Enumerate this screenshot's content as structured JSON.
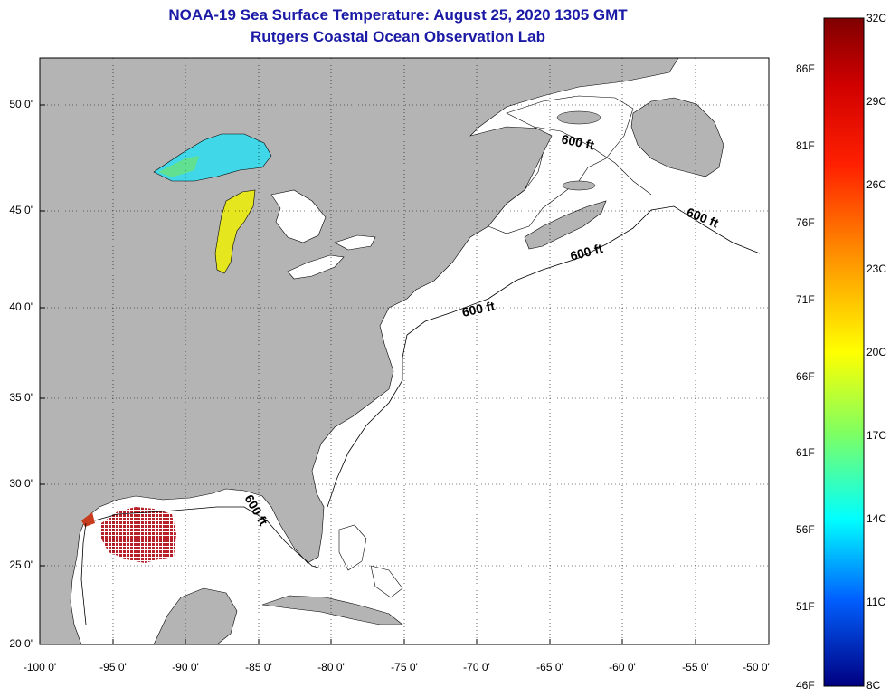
{
  "header": {
    "title": "NOAA-19 Sea Surface Temperature:  August 25, 2020 1305 GMT",
    "subtitle": "Rutgers Coastal Ocean Observation Lab"
  },
  "map": {
    "lat_ticks": [
      "50 0'",
      "45 0'",
      "40 0'",
      "35 0'",
      "30 0'",
      "25 0'",
      "20 0'"
    ],
    "lon_ticks": [
      "-100 0'",
      "-95 0'",
      "-90 0'",
      "-85 0'",
      "-80 0'",
      "-75 0'",
      "-70 0'",
      "-65 0'",
      "-60 0'",
      "-55 0'",
      "-50 0'"
    ],
    "contour_labels": [
      "600 ft",
      "600 ft",
      "600 ft",
      "600 ft",
      "600 ft"
    ],
    "colors": {
      "land": "#b4b4b4",
      "ocean": "#ffffff",
      "gulf_sst": "#b4141e",
      "lake_superior": "#40e0f0",
      "lake_michigan": "#e6e61e"
    }
  },
  "colorbar": {
    "celsius": [
      "32C",
      "29C",
      "26C",
      "23C",
      "20C",
      "17C",
      "14C",
      "11C",
      "8C"
    ],
    "fahrenheit": [
      "86F",
      "81F",
      "76F",
      "71F",
      "66F",
      "61F",
      "56F",
      "51F",
      "46F"
    ],
    "gradient": [
      "#800000",
      "#ff0000",
      "#ff8000",
      "#ffff00",
      "#80ff80",
      "#00ffff",
      "#0080ff",
      "#0000ff",
      "#000080"
    ]
  }
}
